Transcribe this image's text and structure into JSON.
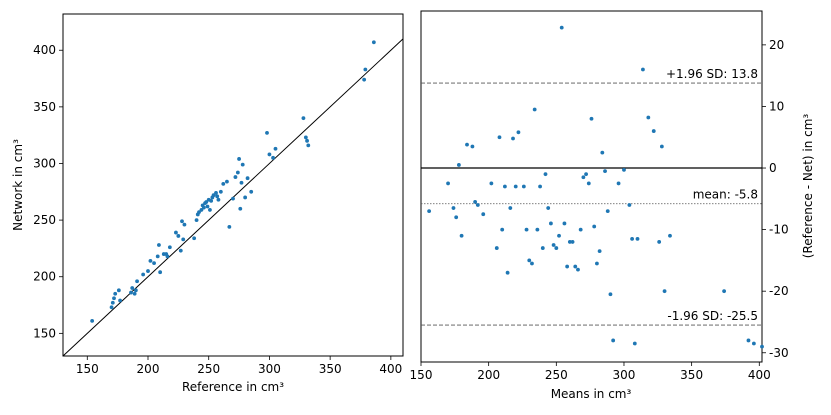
{
  "chart_data": [
    {
      "type": "scatter",
      "xlabel": "Reference in cm³",
      "ylabel": "Network in cm³",
      "xlim": [
        130,
        410
      ],
      "ylim": [
        130,
        432
      ],
      "xticks": [
        150,
        200,
        250,
        300,
        350,
        400
      ],
      "yticks": [
        150,
        200,
        250,
        300,
        350,
        400
      ],
      "identity_line": true,
      "color": "#1f77b4",
      "x": [
        154,
        170,
        171,
        172,
        173,
        176,
        177,
        186,
        187,
        189,
        190,
        191,
        196,
        200,
        202,
        205,
        208,
        209,
        210,
        213,
        215,
        216,
        218,
        223,
        225,
        227,
        228,
        229,
        230,
        238,
        240,
        241,
        242,
        244,
        245,
        246,
        247,
        248,
        249,
        250,
        251,
        252,
        253,
        254,
        256,
        257,
        258,
        260,
        262,
        265,
        267,
        270,
        272,
        274,
        275,
        276,
        277,
        278,
        280,
        282,
        285,
        298,
        300,
        303,
        305,
        328,
        330,
        331,
        332,
        378,
        379,
        386
      ],
      "y": [
        161,
        173,
        177,
        181,
        185,
        188,
        179,
        186,
        190,
        185,
        188,
        196,
        202,
        205,
        214,
        212,
        218,
        228,
        204,
        220,
        220,
        218,
        226,
        239,
        236,
        223,
        249,
        233,
        246,
        234,
        250,
        255,
        257,
        259,
        263,
        261,
        265,
        266,
        262,
        268,
        259,
        267,
        270,
        272,
        274,
        271,
        268,
        275,
        282,
        284,
        244,
        269,
        288,
        292,
        304,
        260,
        283,
        299,
        270,
        287,
        275,
        327,
        308,
        305,
        313,
        340,
        323,
        320,
        316,
        374,
        383,
        407
      ]
    },
    {
      "type": "scatter",
      "xlabel": "Means in cm³",
      "ylabel": "(Reference - Net) in cm³",
      "xlim": [
        150,
        402
      ],
      "ylim": [
        -31.5,
        25.5
      ],
      "xticks": [
        150,
        200,
        250,
        300,
        350,
        400
      ],
      "yticks": [
        -30,
        -20,
        -10,
        0,
        10,
        20
      ],
      "color": "#1f77b4",
      "hlines": [
        {
          "label": "+1.96 SD: 13.8",
          "value": 13.8,
          "style": "dashed"
        },
        {
          "label": "mean: -5.8",
          "value": -5.8,
          "style": "dotted"
        },
        {
          "label": "",
          "value": 0,
          "style": "solid"
        },
        {
          "label": "-1.96 SD: -25.5",
          "value": -25.5,
          "style": "dashed"
        }
      ],
      "x": [
        156,
        170,
        174,
        176,
        178,
        180,
        184,
        188,
        190,
        192,
        196,
        202,
        206,
        208,
        210,
        212,
        214,
        216,
        218,
        220,
        222,
        226,
        228,
        230,
        232,
        234,
        236,
        238,
        240,
        242,
        244,
        246,
        248,
        250,
        252,
        254,
        256,
        258,
        260,
        262,
        264,
        266,
        268,
        270,
        272,
        274,
        276,
        278,
        280,
        282,
        284,
        286,
        288,
        290,
        292,
        296,
        300,
        304,
        306,
        308,
        310,
        314,
        318,
        322,
        326,
        328,
        330,
        334,
        374,
        392,
        396,
        402
      ],
      "y": [
        -7,
        -2.5,
        -6.5,
        -8,
        0.5,
        -11,
        3.8,
        3.5,
        -5.5,
        -6,
        -7.5,
        -2.5,
        -13,
        5,
        -10,
        -3,
        -17,
        -6.5,
        4.8,
        -3,
        5.8,
        -3,
        -10,
        -15,
        -15.5,
        9.5,
        -10,
        -3,
        -13,
        -1,
        -6.5,
        -9,
        -12.5,
        -13,
        -11,
        22.8,
        -9,
        -16,
        -12,
        -12,
        -16,
        -16.5,
        -10,
        -1.5,
        -1,
        -2.5,
        8,
        -9.5,
        -15.5,
        -13.5,
        2.5,
        -0.5,
        -7,
        -20.5,
        -28,
        -2.5,
        -0.3,
        -6,
        -11.5,
        -28.5,
        -11.5,
        16,
        8.2,
        6,
        -12,
        3.5,
        -20,
        -11,
        -20,
        -28,
        -28.5,
        -29
      ]
    }
  ]
}
